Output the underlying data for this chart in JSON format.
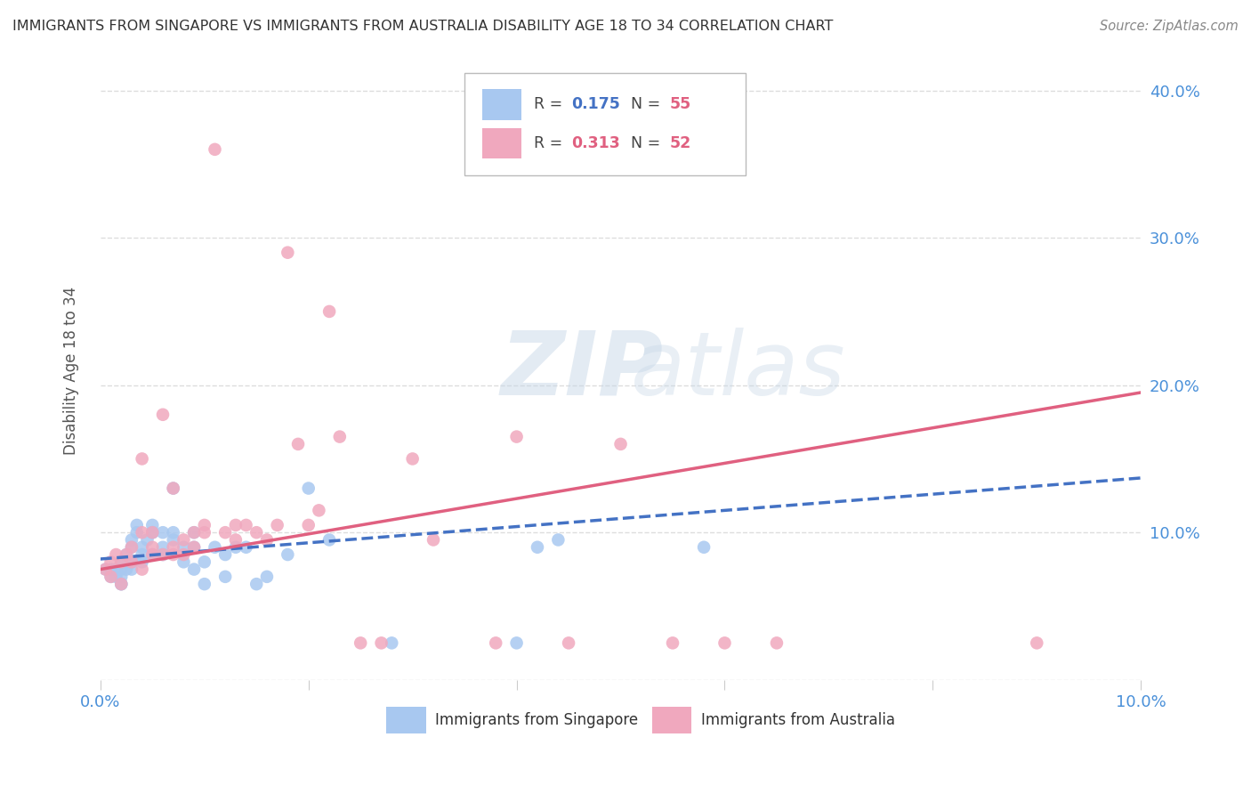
{
  "title": "IMMIGRANTS FROM SINGAPORE VS IMMIGRANTS FROM AUSTRALIA DISABILITY AGE 18 TO 34 CORRELATION CHART",
  "source": "Source: ZipAtlas.com",
  "ylabel": "Disability Age 18 to 34",
  "xlim": [
    0.0,
    0.1
  ],
  "ylim": [
    0.0,
    0.42
  ],
  "singapore_color": "#a8c8f0",
  "australia_color": "#f0a8be",
  "singapore_line_color": "#4472c4",
  "australia_line_color": "#e06080",
  "singapore_R": 0.175,
  "singapore_N": 55,
  "australia_R": 0.313,
  "australia_N": 52,
  "singapore_x": [
    0.0005,
    0.001,
    0.001,
    0.0015,
    0.0015,
    0.002,
    0.002,
    0.002,
    0.002,
    0.002,
    0.0025,
    0.0025,
    0.003,
    0.003,
    0.003,
    0.003,
    0.003,
    0.0035,
    0.0035,
    0.004,
    0.004,
    0.004,
    0.0045,
    0.005,
    0.005,
    0.005,
    0.005,
    0.006,
    0.006,
    0.006,
    0.007,
    0.007,
    0.007,
    0.008,
    0.008,
    0.009,
    0.009,
    0.009,
    0.01,
    0.01,
    0.011,
    0.012,
    0.012,
    0.013,
    0.014,
    0.015,
    0.016,
    0.018,
    0.02,
    0.022,
    0.028,
    0.04,
    0.042,
    0.044,
    0.058
  ],
  "singapore_y": [
    0.075,
    0.07,
    0.075,
    0.07,
    0.075,
    0.065,
    0.07,
    0.075,
    0.08,
    0.065,
    0.075,
    0.085,
    0.08,
    0.075,
    0.08,
    0.09,
    0.095,
    0.1,
    0.105,
    0.08,
    0.085,
    0.09,
    0.095,
    0.1,
    0.105,
    0.1,
    0.085,
    0.085,
    0.09,
    0.1,
    0.13,
    0.095,
    0.1,
    0.08,
    0.09,
    0.075,
    0.09,
    0.1,
    0.065,
    0.08,
    0.09,
    0.07,
    0.085,
    0.09,
    0.09,
    0.065,
    0.07,
    0.085,
    0.13,
    0.095,
    0.025,
    0.025,
    0.09,
    0.095,
    0.09
  ],
  "australia_x": [
    0.0005,
    0.001,
    0.001,
    0.0015,
    0.002,
    0.002,
    0.0025,
    0.003,
    0.003,
    0.004,
    0.004,
    0.004,
    0.005,
    0.005,
    0.005,
    0.006,
    0.006,
    0.007,
    0.007,
    0.007,
    0.008,
    0.008,
    0.009,
    0.009,
    0.01,
    0.01,
    0.011,
    0.012,
    0.013,
    0.013,
    0.014,
    0.015,
    0.016,
    0.017,
    0.018,
    0.019,
    0.02,
    0.021,
    0.022,
    0.023,
    0.025,
    0.027,
    0.03,
    0.032,
    0.038,
    0.04,
    0.045,
    0.05,
    0.055,
    0.06,
    0.065,
    0.09
  ],
  "australia_y": [
    0.075,
    0.07,
    0.08,
    0.085,
    0.065,
    0.08,
    0.085,
    0.08,
    0.09,
    0.075,
    0.1,
    0.15,
    0.085,
    0.09,
    0.1,
    0.085,
    0.18,
    0.085,
    0.09,
    0.13,
    0.085,
    0.095,
    0.09,
    0.1,
    0.1,
    0.105,
    0.36,
    0.1,
    0.095,
    0.105,
    0.105,
    0.1,
    0.095,
    0.105,
    0.29,
    0.16,
    0.105,
    0.115,
    0.25,
    0.165,
    0.025,
    0.025,
    0.15,
    0.095,
    0.025,
    0.165,
    0.025,
    0.16,
    0.025,
    0.025,
    0.025,
    0.025
  ],
  "watermark_zip": "ZIP",
  "watermark_atlas": "atlas",
  "background_color": "#ffffff",
  "grid_color": "#dddddd",
  "title_color": "#333333",
  "axis_color": "#4a90d9",
  "legend_label_singapore": "Immigrants from Singapore",
  "legend_label_australia": "Immigrants from Australia"
}
